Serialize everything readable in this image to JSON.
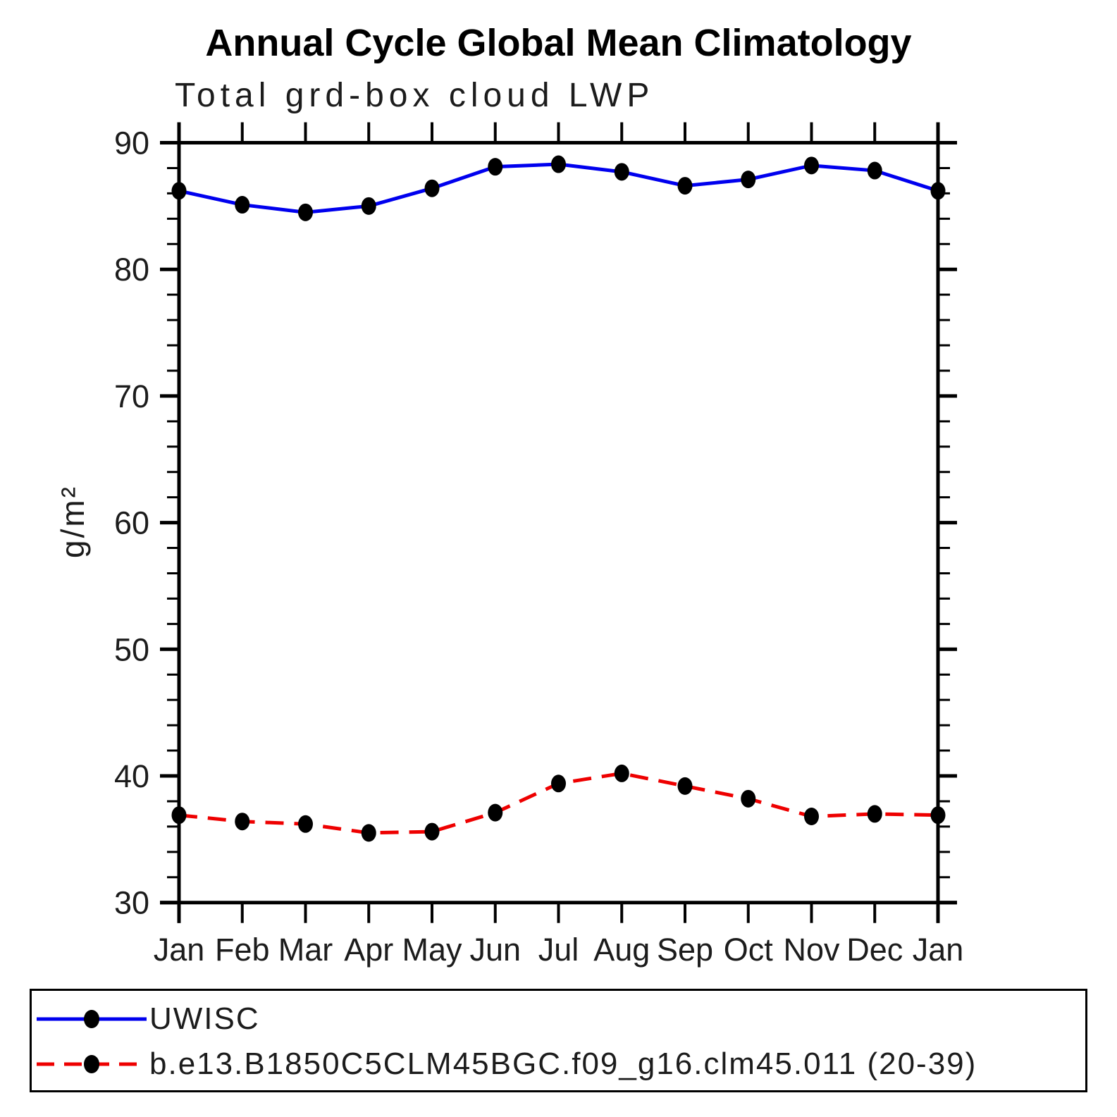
{
  "title": "Annual Cycle Global Mean Climatology",
  "subtitle": "Total grd-box cloud LWP",
  "chart_data": {
    "type": "line",
    "title": "Annual Cycle Global Mean Climatology",
    "subtitle": "Total grd-box cloud LWP",
    "xlabel": "",
    "ylabel": "g/m²",
    "categories": [
      "Jan",
      "Feb",
      "Mar",
      "Apr",
      "May",
      "Jun",
      "Jul",
      "Aug",
      "Sep",
      "Oct",
      "Nov",
      "Dec",
      "Jan"
    ],
    "ylim": [
      30,
      90
    ],
    "ytick_step": 10,
    "yminor_step": 2,
    "grid": false,
    "legend_position": "bottom",
    "axis_color": "#000000",
    "marker_color": "#000000",
    "series": [
      {
        "name": "UWISC",
        "color": "#0000ee",
        "line_style": "solid",
        "marker": "filled-circle",
        "values": [
          86.2,
          85.1,
          84.5,
          85.0,
          86.4,
          88.1,
          88.3,
          87.7,
          86.6,
          87.1,
          88.2,
          87.8,
          86.2
        ]
      },
      {
        "name": "b.e13.B1850C5CLM45BGC.f09_g16.clm45.011 (20-39)",
        "color": "#ee0000",
        "line_style": "dashed",
        "marker": "filled-circle",
        "values": [
          36.9,
          36.4,
          36.2,
          35.5,
          35.6,
          37.1,
          39.4,
          40.2,
          39.2,
          38.2,
          36.8,
          37.0,
          36.9
        ]
      }
    ]
  }
}
